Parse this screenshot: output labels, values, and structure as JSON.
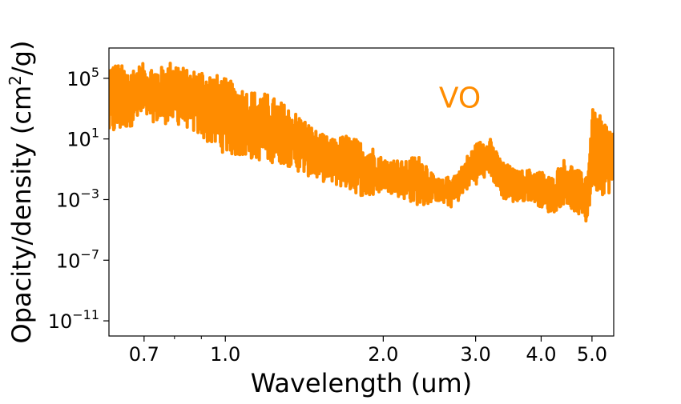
{
  "chart_data": {
    "type": "line",
    "title": "",
    "xlabel": "Wavelength  (um)",
    "ylabel_main": "Opacity/density  (cm",
    "ylabel_sup": "2",
    "ylabel_tail": "/g)",
    "xscale": "log",
    "yscale": "log",
    "xlim": [
      0.6,
      5.5
    ],
    "ylim": [
      1e-12,
      10000000.0
    ],
    "x_ticks": [
      {
        "value": 0.7,
        "label": "0.7"
      },
      {
        "value": 1.0,
        "label": "1.0"
      },
      {
        "value": 2.0,
        "label": "2.0"
      },
      {
        "value": 3.0,
        "label": "3.0"
      },
      {
        "value": 4.0,
        "label": "4.0"
      },
      {
        "value": 5.0,
        "label": "5.0"
      }
    ],
    "x_minor_ticks": [
      0.8,
      0.9
    ],
    "y_ticks": [
      {
        "value": 100000.0,
        "base": "10",
        "exp": "5"
      },
      {
        "value": 10.0,
        "base": "10",
        "exp": "1"
      },
      {
        "value": 0.001,
        "base": "10",
        "exp": "−3"
      },
      {
        "value": 1e-07,
        "base": "10",
        "exp": "−7"
      },
      {
        "value": 1e-11,
        "base": "10",
        "exp": "−11"
      }
    ],
    "grid": false,
    "annotation": {
      "text": "VO",
      "color": "#ff8c00",
      "x": 2.8,
      "y": 5000
    },
    "series": [
      {
        "color": "#ff8c00",
        "envelope": {
          "x": [
            0.6,
            0.65,
            0.7,
            0.75,
            0.8,
            0.85,
            0.9,
            1.0,
            1.1,
            1.2,
            1.3,
            1.4,
            1.5,
            1.6,
            1.7,
            1.8,
            1.9,
            2.0,
            2.1,
            2.2,
            2.3,
            2.4,
            2.5,
            2.6,
            2.7,
            2.8,
            2.9,
            3.0,
            3.1,
            3.2,
            3.3,
            3.4,
            3.6,
            3.8,
            4.0,
            4.2,
            4.4,
            4.6,
            4.8,
            4.9,
            5.0,
            5.2,
            5.5
          ],
          "upper": [
            2000000.0,
            500000.0,
            1000000.0,
            500000.0,
            2000000.0,
            300000.0,
            500000.0,
            100000.0,
            20000.0,
            10000.0,
            2000.0,
            300.0,
            30,
            10,
            20,
            8,
            4,
            0.5,
            0.5,
            0.3,
            1.0,
            0.5,
            0.03,
            0.02,
            0.05,
            0.1,
            1.0,
            5,
            10,
            20,
            1,
            0.3,
            0.08,
            0.1,
            0.08,
            0.03,
            0.5,
            0.2,
            0.05,
            0.1,
            1000.0,
            300.0,
            50
          ],
          "lower": [
            10,
            50,
            200,
            100,
            100,
            50,
            10,
            1,
            0.5,
            0.3,
            0.2,
            0.05,
            0.02,
            0.01,
            0.005,
            0.002,
            0.001,
            0.005,
            0.002,
            0.001,
            0.0005,
            0.0003,
            0.001,
            0.0005,
            0.0003,
            0.001,
            0.005,
            0.01,
            0.02,
            0.05,
            0.003,
            0.001,
            0.0005,
            0.001,
            0.0003,
            0.0001,
            0.0005,
            0.0002,
            5e-05,
            2e-05,
            0.005,
            0.002,
            0.003
          ]
        }
      }
    ]
  }
}
